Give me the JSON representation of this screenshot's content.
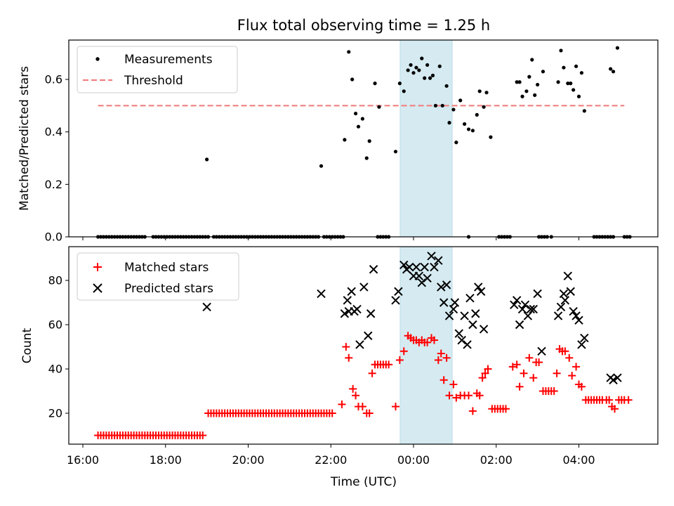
{
  "chart_data": [
    {
      "type": "scatter",
      "title": "Flux total observing time = 1.25 h",
      "xlabel": "",
      "ylabel": "Matched/Predicted stars",
      "xlim": [
        "16:00",
        "05:50"
      ],
      "ylim": [
        0,
        0.75
      ],
      "yticks": [
        "0.0",
        "0.2",
        "0.4",
        "0.6"
      ],
      "highlight_span": {
        "start": "23:42",
        "end": "00:58",
        "color": "#d5ebf1"
      },
      "legend": {
        "placement": "top-left",
        "entries": [
          "Measurements",
          "Threshold"
        ]
      },
      "threshold": {
        "name": "Threshold",
        "y": 0.5,
        "x_start": "16:22",
        "x_end": "05:06",
        "color": "#f08080",
        "style": "dashed"
      },
      "series": [
        {
          "name": "Measurements",
          "marker": "dot",
          "color": "#000000",
          "zero_points": [
            "16:22",
            "16:26",
            "16:30",
            "16:34",
            "16:38",
            "16:42",
            "16:46",
            "16:50",
            "16:54",
            "16:58",
            "17:02",
            "17:06",
            "17:10",
            "17:14",
            "17:18",
            "17:22",
            "17:26",
            "17:30",
            "17:42",
            "17:46",
            "17:50",
            "17:54",
            "17:58",
            "18:02",
            "18:06",
            "18:10",
            "18:14",
            "18:18",
            "18:22",
            "18:26",
            "18:30",
            "18:34",
            "18:38",
            "18:42",
            "18:46",
            "18:50",
            "18:54",
            "18:58",
            "19:02",
            "19:10",
            "19:14",
            "19:18",
            "19:22",
            "19:26",
            "19:30",
            "19:34",
            "19:38",
            "19:42",
            "19:46",
            "19:50",
            "19:54",
            "19:58",
            "20:02",
            "20:06",
            "20:10",
            "20:14",
            "20:18",
            "20:22",
            "20:26",
            "20:30",
            "20:34",
            "20:38",
            "20:42",
            "20:46",
            "20:50",
            "20:54",
            "20:58",
            "21:02",
            "21:06",
            "21:10",
            "21:14",
            "21:18",
            "21:22",
            "21:26",
            "21:30",
            "21:34",
            "21:38",
            "21:42",
            "21:50",
            "21:54",
            "21:58",
            "22:02",
            "22:06",
            "22:10",
            "22:14",
            "22:18",
            "23:08",
            "23:12",
            "23:16",
            "23:20",
            "23:24",
            "01:20",
            "02:04",
            "02:08",
            "02:12",
            "02:16",
            "02:20",
            "03:02",
            "03:06",
            "03:10",
            "03:14",
            "03:20",
            "04:22",
            "04:26",
            "04:30",
            "04:34",
            "04:38",
            "04:42",
            "04:46",
            "04:50",
            "05:06",
            "05:10",
            "05:14"
          ],
          "points": [
            [
              "19:00",
              0.295
            ],
            [
              "21:46",
              0.27
            ],
            [
              "22:20",
              0.37
            ],
            [
              "22:26",
              0.705
            ],
            [
              "22:31",
              0.6
            ],
            [
              "22:36",
              0.47
            ],
            [
              "22:40",
              0.42
            ],
            [
              "22:46",
              0.45
            ],
            [
              "22:52",
              0.3
            ],
            [
              "22:56",
              0.365
            ],
            [
              "23:04",
              0.585
            ],
            [
              "23:10",
              0.495
            ],
            [
              "23:34",
              0.325
            ],
            [
              "23:40",
              0.585
            ],
            [
              "23:46",
              0.555
            ],
            [
              "23:52",
              0.635
            ],
            [
              "23:56",
              0.655
            ],
            [
              "00:00",
              0.625
            ],
            [
              "00:04",
              0.645
            ],
            [
              "00:08",
              0.635
            ],
            [
              "00:12",
              0.68
            ],
            [
              "00:16",
              0.605
            ],
            [
              "00:20",
              0.655
            ],
            [
              "00:24",
              0.605
            ],
            [
              "00:28",
              0.615
            ],
            [
              "00:32",
              0.5
            ],
            [
              "00:38",
              0.65
            ],
            [
              "00:42",
              0.5
            ],
            [
              "00:48",
              0.575
            ],
            [
              "00:52",
              0.435
            ],
            [
              "00:58",
              0.485
            ],
            [
              "01:02",
              0.36
            ],
            [
              "01:08",
              0.52
            ],
            [
              "01:14",
              0.43
            ],
            [
              "01:20",
              0.41
            ],
            [
              "01:26",
              0.405
            ],
            [
              "01:32",
              0.465
            ],
            [
              "01:36",
              0.555
            ],
            [
              "01:42",
              0.495
            ],
            [
              "01:46",
              0.55
            ],
            [
              "01:52",
              0.38
            ],
            [
              "02:30",
              0.59
            ],
            [
              "02:34",
              0.59
            ],
            [
              "02:38",
              0.535
            ],
            [
              "02:44",
              0.555
            ],
            [
              "02:48",
              0.61
            ],
            [
              "02:52",
              0.675
            ],
            [
              "02:56",
              0.54
            ],
            [
              "03:00",
              0.58
            ],
            [
              "03:08",
              0.63
            ],
            [
              "03:30",
              0.59
            ],
            [
              "03:34",
              0.71
            ],
            [
              "03:38",
              0.645
            ],
            [
              "03:44",
              0.585
            ],
            [
              "03:48",
              0.585
            ],
            [
              "03:52",
              0.56
            ],
            [
              "03:56",
              0.65
            ],
            [
              "04:00",
              0.535
            ],
            [
              "04:04",
              0.625
            ],
            [
              "04:08",
              0.48
            ],
            [
              "04:46",
              0.64
            ],
            [
              "04:50",
              0.63
            ],
            [
              "04:56",
              0.72
            ]
          ]
        }
      ]
    },
    {
      "type": "scatter",
      "title": "",
      "xlabel": "Time (UTC)",
      "ylabel": "Count",
      "xlim": [
        "16:00",
        "05:50"
      ],
      "ylim": [
        6,
        93
      ],
      "yticks": [
        "20",
        "40",
        "60",
        "80"
      ],
      "xticks": [
        "16:00",
        "18:00",
        "20:00",
        "22:00",
        "00:00",
        "02:00",
        "04:00"
      ],
      "highlight_span": {
        "start": "23:42",
        "end": "00:58",
        "color": "#d5ebf1"
      },
      "legend": {
        "placement": "top-left",
        "entries": [
          "Matched stars",
          "Predicted stars"
        ]
      },
      "series": [
        {
          "name": "Matched stars",
          "marker": "plus",
          "color": "#ff0000",
          "runs": [
            {
              "value": 10,
              "start": "16:22",
              "end": "18:54",
              "step_min": 4
            },
            {
              "value": 20,
              "start": "19:02",
              "end": "22:02",
              "step_min": 4
            }
          ],
          "points": [
            [
              "22:16",
              24
            ],
            [
              "22:22",
              50
            ],
            [
              "22:26",
              45
            ],
            [
              "22:32",
              31
            ],
            [
              "22:36",
              28
            ],
            [
              "22:40",
              23
            ],
            [
              "22:46",
              23
            ],
            [
              "22:52",
              20
            ],
            [
              "22:56",
              20
            ],
            [
              "23:00",
              38
            ],
            [
              "23:04",
              42
            ],
            [
              "23:08",
              42
            ],
            [
              "23:12",
              42
            ],
            [
              "23:16",
              42
            ],
            [
              "23:20",
              42
            ],
            [
              "23:24",
              42
            ],
            [
              "23:34",
              23
            ],
            [
              "23:40",
              44
            ],
            [
              "23:46",
              48
            ],
            [
              "23:52",
              55
            ],
            [
              "23:56",
              54
            ],
            [
              "00:00",
              53
            ],
            [
              "00:04",
              53
            ],
            [
              "00:08",
              52
            ],
            [
              "00:12",
              53
            ],
            [
              "00:16",
              52
            ],
            [
              "00:20",
              52
            ],
            [
              "00:26",
              54
            ],
            [
              "00:30",
              53
            ],
            [
              "00:36",
              44
            ],
            [
              "00:40",
              47
            ],
            [
              "00:44",
              35
            ],
            [
              "00:48",
              45
            ],
            [
              "00:52",
              28
            ],
            [
              "00:58",
              33
            ],
            [
              "01:02",
              27
            ],
            [
              "01:08",
              28
            ],
            [
              "01:14",
              28
            ],
            [
              "01:20",
              28
            ],
            [
              "01:26",
              21
            ],
            [
              "01:32",
              29
            ],
            [
              "01:36",
              28
            ],
            [
              "01:40",
              36
            ],
            [
              "01:44",
              38
            ],
            [
              "01:48",
              40
            ],
            [
              "01:54",
              22
            ],
            [
              "01:58",
              22
            ],
            [
              "02:02",
              22
            ],
            [
              "02:06",
              22
            ],
            [
              "02:10",
              22
            ],
            [
              "02:14",
              22
            ],
            [
              "02:24",
              41
            ],
            [
              "02:30",
              42
            ],
            [
              "02:34",
              32
            ],
            [
              "02:40",
              38
            ],
            [
              "02:48",
              45
            ],
            [
              "02:54",
              36
            ],
            [
              "02:58",
              43
            ],
            [
              "03:02",
              43
            ],
            [
              "03:08",
              30
            ],
            [
              "03:12",
              30
            ],
            [
              "03:16",
              30
            ],
            [
              "03:20",
              30
            ],
            [
              "03:24",
              30
            ],
            [
              "03:28",
              38
            ],
            [
              "03:32",
              49
            ],
            [
              "03:36",
              48
            ],
            [
              "03:40",
              48
            ],
            [
              "03:46",
              45
            ],
            [
              "03:50",
              37
            ],
            [
              "03:56",
              41
            ],
            [
              "04:00",
              33
            ],
            [
              "04:04",
              32
            ],
            [
              "04:10",
              26
            ],
            [
              "04:14",
              26
            ],
            [
              "04:18",
              26
            ],
            [
              "04:22",
              26
            ],
            [
              "04:26",
              26
            ],
            [
              "04:30",
              26
            ],
            [
              "04:34",
              26
            ],
            [
              "04:40",
              26
            ],
            [
              "04:44",
              26
            ],
            [
              "04:48",
              23
            ],
            [
              "04:52",
              22
            ],
            [
              "04:58",
              26
            ],
            [
              "05:02",
              26
            ],
            [
              "05:06",
              26
            ],
            [
              "05:12",
              26
            ]
          ]
        },
        {
          "name": "Predicted stars",
          "marker": "x",
          "color": "#000000",
          "points": [
            [
              "19:00",
              68
            ],
            [
              "21:46",
              74
            ],
            [
              "22:20",
              65
            ],
            [
              "22:24",
              71
            ],
            [
              "22:26",
              66
            ],
            [
              "22:30",
              75
            ],
            [
              "22:34",
              66
            ],
            [
              "22:38",
              67
            ],
            [
              "22:42",
              51
            ],
            [
              "22:48",
              77
            ],
            [
              "22:54",
              55
            ],
            [
              "22:58",
              65
            ],
            [
              "23:02",
              85
            ],
            [
              "23:34",
              71
            ],
            [
              "23:38",
              75
            ],
            [
              "23:46",
              87
            ],
            [
              "23:50",
              85
            ],
            [
              "23:54",
              86
            ],
            [
              "00:00",
              82
            ],
            [
              "00:04",
              86
            ],
            [
              "00:08",
              82
            ],
            [
              "00:12",
              79
            ],
            [
              "00:16",
              86
            ],
            [
              "00:20",
              81
            ],
            [
              "00:26",
              91
            ],
            [
              "00:30",
              86
            ],
            [
              "00:36",
              89
            ],
            [
              "00:40",
              77
            ],
            [
              "00:44",
              70
            ],
            [
              "00:48",
              78
            ],
            [
              "00:52",
              64
            ],
            [
              "00:58",
              67
            ],
            [
              "01:00",
              70
            ],
            [
              "01:06",
              56
            ],
            [
              "01:10",
              53
            ],
            [
              "01:14",
              64
            ],
            [
              "01:18",
              51
            ],
            [
              "01:22",
              72
            ],
            [
              "01:26",
              60
            ],
            [
              "01:30",
              65
            ],
            [
              "01:34",
              77
            ],
            [
              "01:38",
              75
            ],
            [
              "01:42",
              58
            ],
            [
              "02:26",
              69
            ],
            [
              "02:30",
              71
            ],
            [
              "02:34",
              60
            ],
            [
              "02:38",
              67
            ],
            [
              "02:42",
              69
            ],
            [
              "02:46",
              64
            ],
            [
              "02:50",
              67
            ],
            [
              "02:54",
              67
            ],
            [
              "03:00",
              74
            ],
            [
              "03:06",
              48
            ],
            [
              "03:30",
              64
            ],
            [
              "03:34",
              68
            ],
            [
              "03:38",
              74
            ],
            [
              "03:40",
              71
            ],
            [
              "03:44",
              82
            ],
            [
              "03:48",
              75
            ],
            [
              "03:52",
              66
            ],
            [
              "03:56",
              64
            ],
            [
              "04:00",
              62
            ],
            [
              "04:04",
              51
            ],
            [
              "04:08",
              54
            ],
            [
              "04:46",
              36
            ],
            [
              "04:50",
              35
            ],
            [
              "04:56",
              36
            ]
          ]
        }
      ]
    }
  ]
}
